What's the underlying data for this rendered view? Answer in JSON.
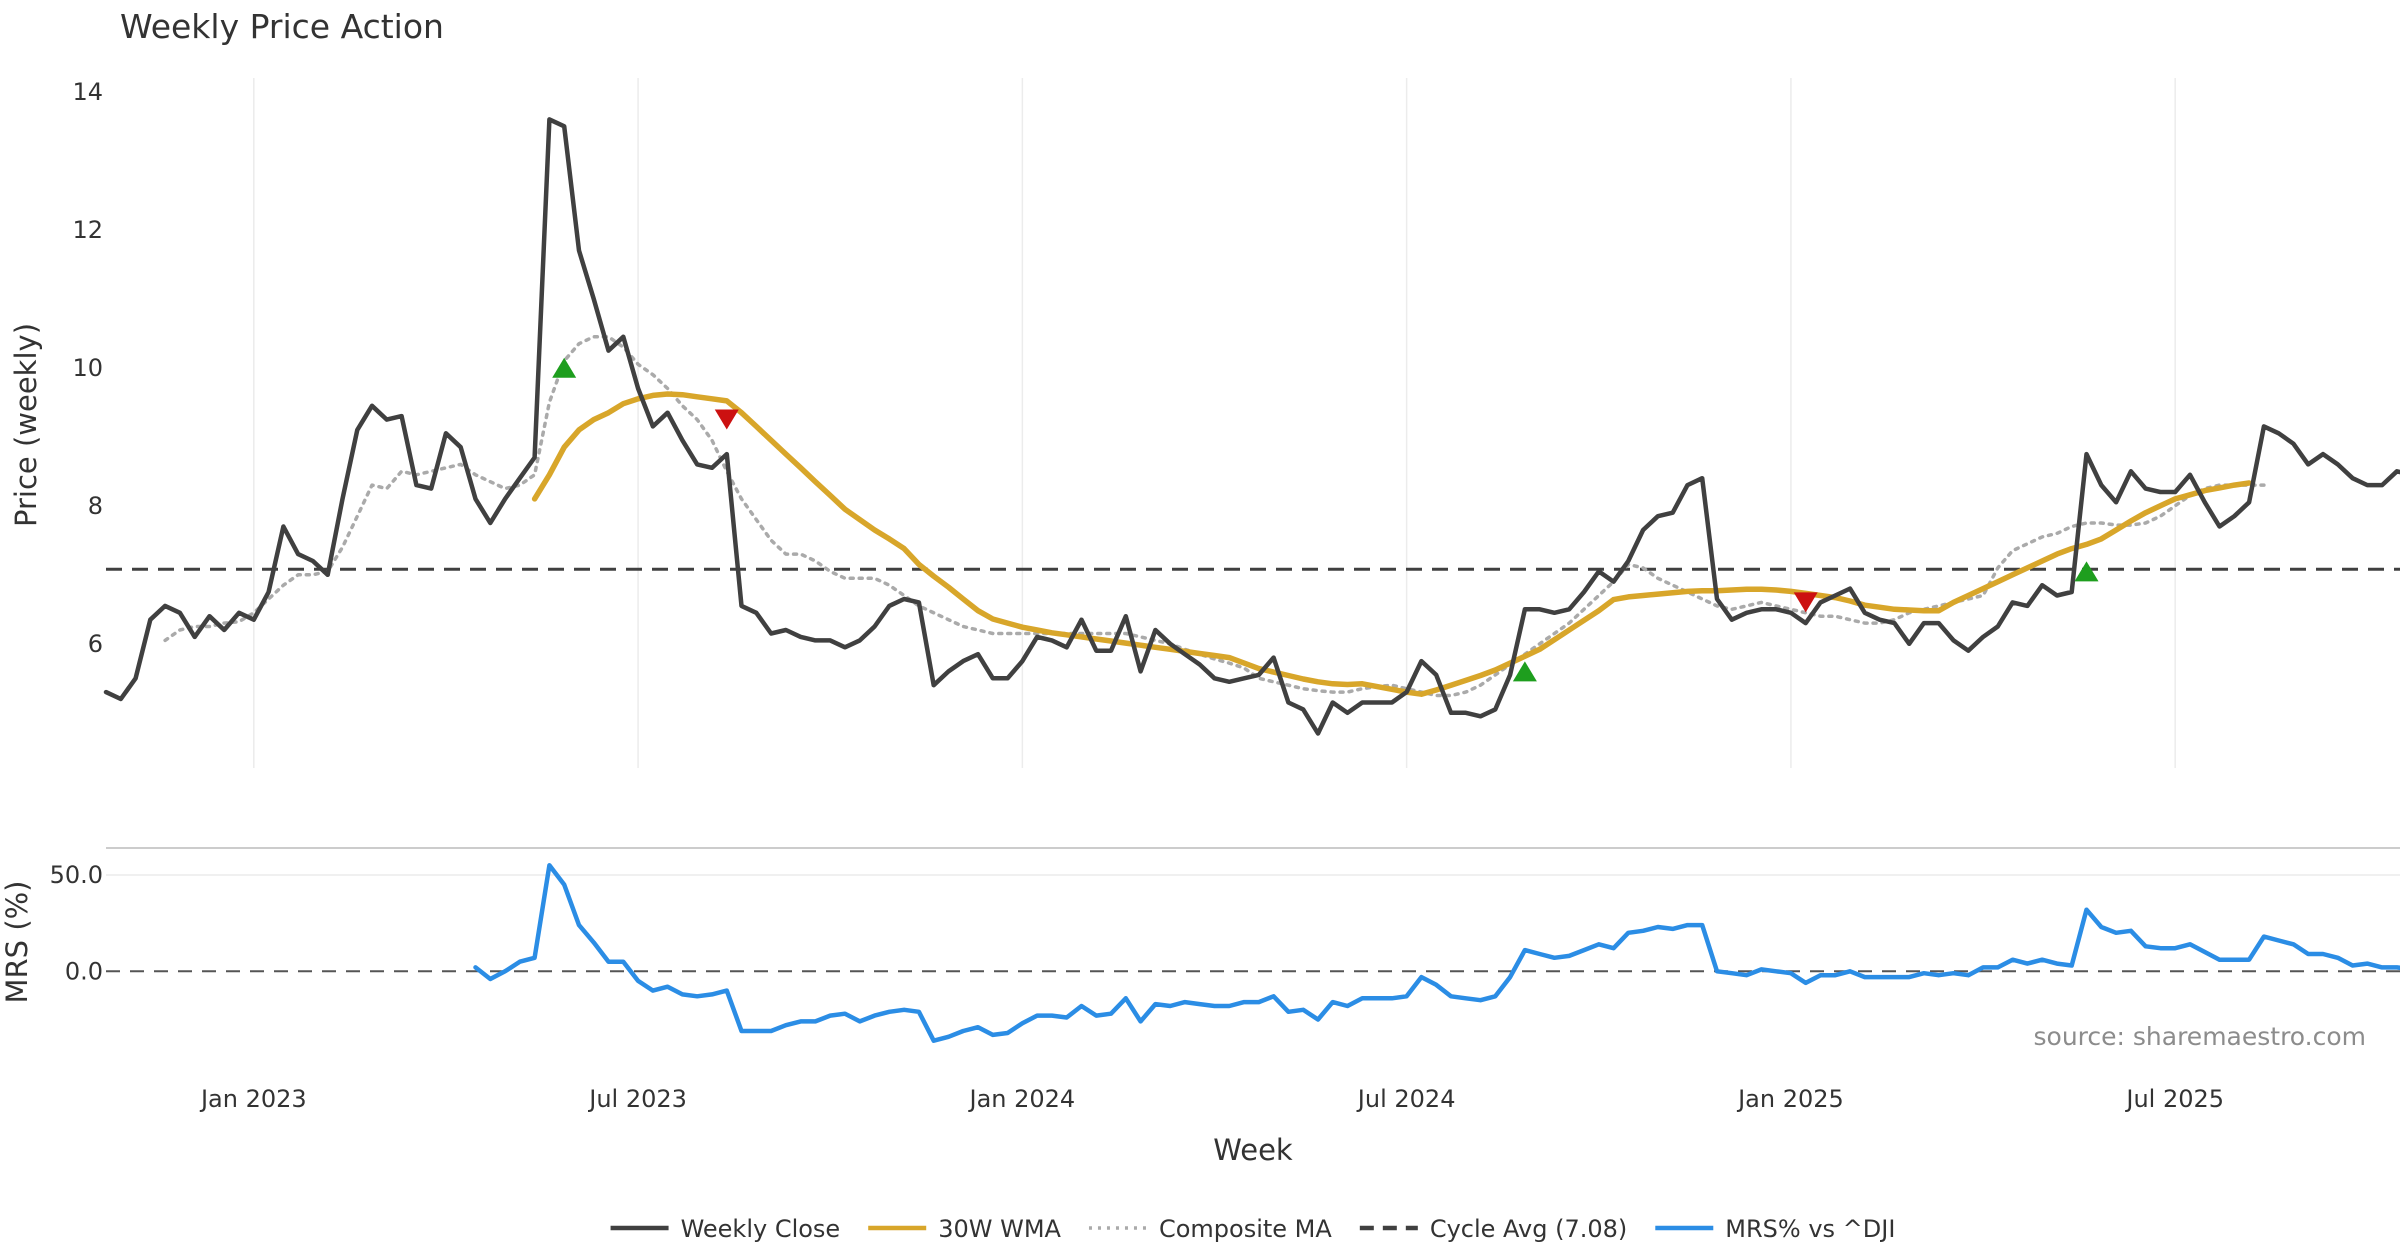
{
  "chart_data": {
    "type": "line",
    "title": "Weekly Price Action",
    "xlabel": "Week",
    "source": "source: sharemaestro.com",
    "x_tick_labels": [
      "Jan 2023",
      "Jul 2023",
      "Jan 2024",
      "Jul 2024",
      "Jan 2025",
      "Jul 2025"
    ],
    "x_tick_weeks": [
      10,
      36,
      62,
      88,
      114,
      140
    ],
    "price_panel": {
      "ylabel": "Price (weekly)",
      "ylim": [
        4.2,
        14.2
      ],
      "y_ticks": [
        6,
        8,
        10,
        12,
        14
      ],
      "y_tick_labels": [
        "6",
        "8",
        "10",
        "12",
        "14"
      ],
      "grid": "vertical",
      "series": [
        {
          "name": "Weekly Close",
          "start_week": 0,
          "values": [
            5.3,
            5.2,
            5.5,
            6.35,
            6.55,
            6.45,
            6.1,
            6.4,
            6.2,
            6.45,
            6.35,
            6.75,
            7.7,
            7.3,
            7.2,
            7.0,
            8.1,
            9.1,
            9.45,
            9.25,
            9.3,
            8.3,
            8.25,
            9.05,
            8.85,
            8.1,
            7.75,
            8.1,
            8.4,
            8.7,
            13.6,
            13.5,
            11.7,
            11.0,
            10.25,
            10.45,
            9.7,
            9.15,
            9.35,
            8.95,
            8.6,
            8.55,
            8.75,
            6.55,
            6.45,
            6.15,
            6.2,
            6.1,
            6.05,
            6.05,
            5.95,
            6.05,
            6.25,
            6.55,
            6.65,
            6.6,
            5.4,
            5.6,
            5.75,
            5.85,
            5.5,
            5.5,
            5.75,
            6.1,
            6.05,
            5.95,
            6.35,
            5.9,
            5.9,
            6.4,
            5.6,
            6.2,
            6.0,
            5.85,
            5.7,
            5.5,
            5.45,
            5.5,
            5.55,
            5.8,
            5.15,
            5.05,
            4.7,
            5.15,
            5.0,
            5.15,
            5.15,
            5.15,
            5.3,
            5.75,
            5.55,
            5.0,
            5.0,
            4.95,
            5.05,
            5.55,
            6.5,
            6.5,
            6.45,
            6.5,
            6.75,
            7.05,
            6.9,
            7.2,
            7.65,
            7.85,
            7.9,
            8.3,
            8.4,
            6.65,
            6.35,
            6.45,
            6.5,
            6.5,
            6.45,
            6.3,
            6.6,
            6.7,
            6.8,
            6.45,
            6.35,
            6.3,
            6.0,
            6.3,
            6.3,
            6.05,
            5.9,
            6.1,
            6.25,
            6.6,
            6.55,
            6.85,
            6.7,
            6.75,
            8.75,
            8.3,
            8.05,
            8.5,
            8.25,
            8.2,
            8.2,
            8.45,
            8.05,
            7.7,
            7.85,
            8.05,
            9.15,
            9.05,
            8.9,
            8.6,
            8.75,
            8.6,
            8.4,
            8.3,
            8.3,
            8.5,
            8.45
          ],
          "color": "#404040",
          "style": "solid"
        },
        {
          "name": "30W WMA",
          "start_week": 29,
          "values": [
            8.1,
            8.45,
            8.85,
            9.1,
            9.25,
            9.35,
            9.48,
            9.55,
            9.6,
            9.62,
            9.61,
            9.58,
            9.55,
            9.52,
            9.35,
            9.15,
            8.95,
            8.75,
            8.55,
            8.35,
            8.15,
            7.95,
            7.8,
            7.65,
            7.52,
            7.38,
            7.15,
            6.98,
            6.82,
            6.65,
            6.48,
            6.36,
            6.3,
            6.24,
            6.2,
            6.16,
            6.13,
            6.1,
            6.07,
            6.04,
            6.01,
            5.98,
            5.95,
            5.92,
            5.89,
            5.86,
            5.83,
            5.8,
            5.72,
            5.64,
            5.59,
            5.54,
            5.49,
            5.45,
            5.42,
            5.41,
            5.42,
            5.38,
            5.34,
            5.3,
            5.27,
            5.33,
            5.4,
            5.47,
            5.54,
            5.62,
            5.72,
            5.82,
            5.92,
            6.06,
            6.2,
            6.34,
            6.48,
            6.64,
            6.68,
            6.7,
            6.72,
            6.74,
            6.76,
            6.77,
            6.77,
            6.78,
            6.79,
            6.79,
            6.78,
            6.76,
            6.73,
            6.7,
            6.67,
            6.62,
            6.56,
            6.53,
            6.5,
            6.49,
            6.48,
            6.48,
            6.6,
            6.7,
            6.8,
            6.9,
            7.0,
            7.1,
            7.2,
            7.3,
            7.38,
            7.44,
            7.52,
            7.65,
            7.78,
            7.9,
            8.0,
            8.1,
            8.16,
            8.22,
            8.26,
            8.3,
            8.33
          ],
          "color": "#d8a62a",
          "style": "solid"
        },
        {
          "name": "Composite MA",
          "start_week": 4,
          "values": [
            6.05,
            6.2,
            6.25,
            6.25,
            6.3,
            6.32,
            6.45,
            6.65,
            6.85,
            7.0,
            7.0,
            7.05,
            7.4,
            7.85,
            8.3,
            8.25,
            8.5,
            8.45,
            8.5,
            8.55,
            8.6,
            8.45,
            8.35,
            8.25,
            8.3,
            8.45,
            9.5,
            10.1,
            10.35,
            10.45,
            10.45,
            10.3,
            10.05,
            9.9,
            9.7,
            9.45,
            9.25,
            8.95,
            8.5,
            8.1,
            7.8,
            7.5,
            7.3,
            7.3,
            7.2,
            7.05,
            6.95,
            6.95,
            6.95,
            6.85,
            6.7,
            6.55,
            6.45,
            6.35,
            6.25,
            6.2,
            6.15,
            6.15,
            6.15,
            6.15,
            6.15,
            6.15,
            6.15,
            6.15,
            6.15,
            6.15,
            6.1,
            6.05,
            6.0,
            5.92,
            5.85,
            5.78,
            5.72,
            5.65,
            5.5,
            5.45,
            5.4,
            5.35,
            5.32,
            5.3,
            5.3,
            5.35,
            5.38,
            5.4,
            5.35,
            5.3,
            5.25,
            5.25,
            5.3,
            5.4,
            5.55,
            5.7,
            5.85,
            6.0,
            6.15,
            6.3,
            6.5,
            6.7,
            6.9,
            7.15,
            7.1,
            6.95,
            6.85,
            6.75,
            6.65,
            6.55,
            6.5,
            6.55,
            6.6,
            6.55,
            6.5,
            6.45,
            6.4,
            6.4,
            6.35,
            6.3,
            6.3,
            6.35,
            6.45,
            6.5,
            6.55,
            6.6,
            6.65,
            6.7,
            7.1,
            7.35,
            7.45,
            7.55,
            7.6,
            7.7,
            7.75,
            7.75,
            7.72,
            7.72,
            7.75,
            7.85,
            8.0,
            8.15,
            8.25,
            8.3,
            8.3,
            8.3,
            8.3
          ],
          "color": "#aaaaaa",
          "style": "dotted"
        },
        {
          "name": "Cycle Avg (7.08)",
          "value": 7.08,
          "color": "#404040",
          "style": "dashed"
        }
      ],
      "signals": [
        {
          "type": "buy",
          "week": 31,
          "value": 10.0
        },
        {
          "type": "sell",
          "week": 42,
          "value": 9.25
        },
        {
          "type": "buy",
          "week": 96,
          "value": 5.6
        },
        {
          "type": "sell",
          "week": 115,
          "value": 6.6
        },
        {
          "type": "buy",
          "week": 134,
          "value": 7.05
        }
      ]
    },
    "mrs_panel": {
      "ylabel": "MRS (%)",
      "ylim": [
        -45,
        64
      ],
      "y_ticks": [
        0,
        50
      ],
      "y_tick_labels": [
        "0.0",
        "50.0"
      ],
      "series": [
        {
          "name": "MRS% vs ^DJI",
          "start_week": 25,
          "values": [
            2,
            -4,
            0,
            5,
            7,
            55,
            45,
            24,
            15,
            5,
            5,
            -5,
            -10,
            -8,
            -12,
            -13,
            -12,
            -10,
            -31,
            -31,
            -31,
            -28,
            -26,
            -26,
            -23,
            -22,
            -26,
            -23,
            -21,
            -20,
            -21,
            -36,
            -34,
            -31,
            -29,
            -33,
            -32,
            -27,
            -23,
            -23,
            -24,
            -18,
            -23,
            -22,
            -14,
            -26,
            -17,
            -18,
            -16,
            -17,
            -18,
            -18,
            -16,
            -16,
            -13,
            -21,
            -20,
            -25,
            -16,
            -18,
            -14,
            -14,
            -14,
            -13,
            -3,
            -7,
            -13,
            -14,
            -15,
            -13,
            -3,
            11,
            9,
            7,
            8,
            11,
            14,
            12,
            20,
            21,
            23,
            22,
            24,
            24,
            0,
            -1,
            -2,
            1,
            0,
            -1,
            -6,
            -2,
            -2,
            0,
            -3,
            -3,
            -3,
            -3,
            -1,
            -2,
            -1,
            -2,
            2,
            2,
            6,
            4,
            6,
            4,
            3,
            32,
            23,
            20,
            21,
            13,
            12,
            12,
            14,
            10,
            6,
            6,
            6,
            18,
            16,
            14,
            9,
            9,
            7,
            3,
            4,
            2,
            2,
            1
          ],
          "color": "#2b8de5",
          "style": "solid"
        }
      ]
    },
    "legend": [
      {
        "label": "Weekly Close",
        "color": "#404040",
        "style": "solid"
      },
      {
        "label": "30W WMA",
        "color": "#d8a62a",
        "style": "solid"
      },
      {
        "label": "Composite MA",
        "color": "#aaaaaa",
        "style": "dotted"
      },
      {
        "label": "Cycle Avg (7.08)",
        "color": "#404040",
        "style": "dashed"
      },
      {
        "label": "MRS% vs ^DJI",
        "color": "#2b8de5",
        "style": "solid"
      }
    ],
    "legend_position": "bottom-center",
    "signal_colors": {
      "buy": "#1e9e1e",
      "sell": "#cc1111"
    }
  }
}
